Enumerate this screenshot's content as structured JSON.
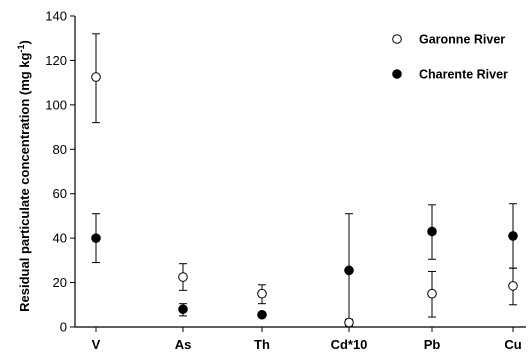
{
  "chart_data": {
    "type": "scatter",
    "title": "",
    "xlabel": "",
    "ylabel": "Residual particulate concentration (mg kg",
    "ylabel_sup": "-1",
    "ylabel_close": ")",
    "categories": [
      "V",
      "As",
      "Th",
      "Cd*10",
      "Pb",
      "Cu"
    ],
    "ylim": [
      0,
      140
    ],
    "yticks": [
      0,
      20,
      40,
      60,
      80,
      100,
      120,
      140
    ],
    "grid": false,
    "legend_position": "top-right",
    "series": [
      {
        "name": "Garonne River",
        "marker": "open-circle",
        "values": [
          112.5,
          22.5,
          15,
          2,
          15,
          18.5
        ],
        "err_low": [
          92,
          16.5,
          10.5,
          0.5,
          4.5,
          10
        ],
        "err_high": [
          132,
          28.5,
          19,
          3.5,
          25,
          26.5
        ]
      },
      {
        "name": "Charente River",
        "marker": "filled-circle",
        "values": [
          40,
          8,
          5.5,
          25.5,
          43,
          41
        ],
        "err_low": [
          29,
          5,
          5.5,
          0,
          30.5,
          26.5
        ],
        "err_high": [
          51,
          10.5,
          5.5,
          51,
          55,
          55.5
        ]
      }
    ]
  }
}
